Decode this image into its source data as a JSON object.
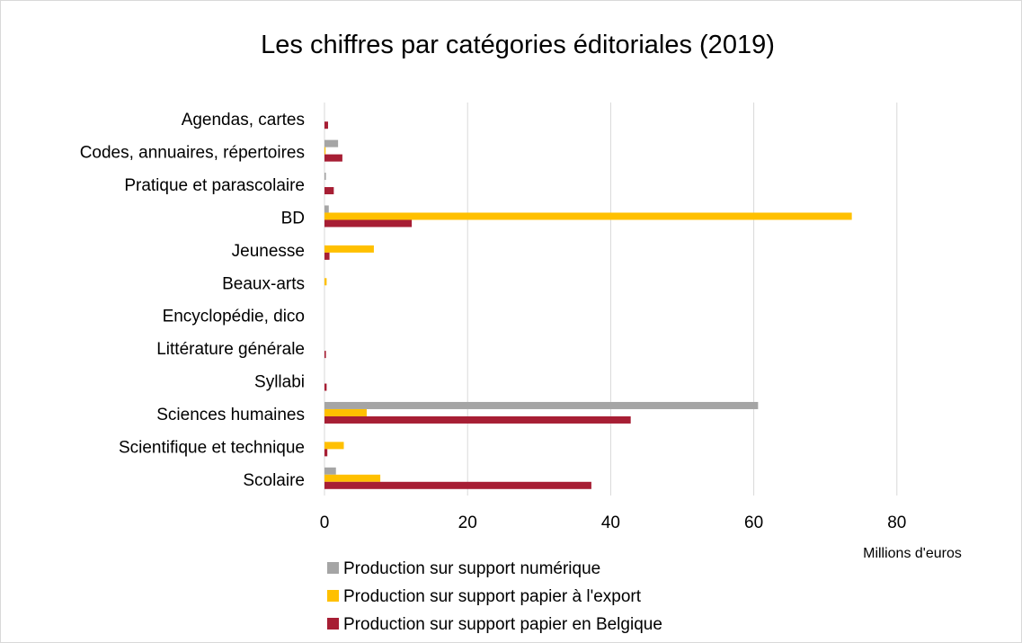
{
  "chart_data": {
    "type": "bar",
    "orientation": "horizontal",
    "title": "Les chiffres par catégories éditoriales (2019)",
    "xlabel": "Millions d'euros",
    "ylabel": "",
    "xlim": [
      0,
      90
    ],
    "xticks": [
      0,
      20,
      40,
      60,
      80
    ],
    "grid": true,
    "legend_position": "bottom",
    "categories": [
      "Agendas, cartes",
      "Codes, annuaires, répertoires",
      "Pratique et parascolaire",
      "BD",
      "Jeunesse",
      "Beaux-arts",
      "Encyclopédie, dico",
      "Littérature générale",
      "Syllabi",
      "Sciences humaines",
      "Scientifique et technique",
      "Scolaire"
    ],
    "series": [
      {
        "name": "Production sur support numérique",
        "color": "#a5a5a5",
        "values": [
          0,
          1.9,
          0.2,
          0.6,
          0,
          0,
          0,
          0,
          0,
          60.6,
          0,
          1.6
        ]
      },
      {
        "name": "Production sur support papier à l'export",
        "color": "#ffc000",
        "values": [
          0,
          0.1,
          0,
          73.7,
          6.9,
          0.3,
          0,
          0,
          0,
          5.9,
          2.7,
          7.8
        ]
      },
      {
        "name": "Production sur support papier en Belgique",
        "color": "#a71e34",
        "values": [
          0.5,
          2.5,
          1.3,
          12.2,
          0.7,
          0,
          0,
          0.2,
          0.3,
          42.8,
          0.4,
          37.3
        ]
      }
    ]
  }
}
